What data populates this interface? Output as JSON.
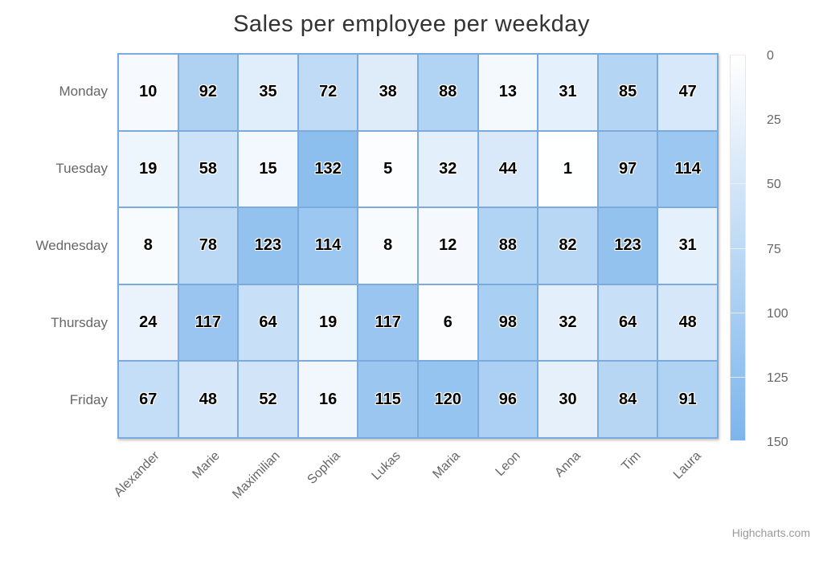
{
  "title": "Sales per employee per weekday",
  "credit_label": "Highcharts.com",
  "colors": {
    "title_text": "#333333",
    "axis_label": "#666666",
    "cell_border": "#7daadc",
    "data_label": "#000000",
    "legend_border": "#e6e6e6",
    "legend_tick": "#f0f0f0",
    "credit_text": "#999999"
  },
  "chart_data": {
    "type": "heatmap",
    "title": "Sales per employee per weekday",
    "xlabel": "",
    "ylabel": "",
    "x_categories": [
      "Alexander",
      "Marie",
      "Maximilian",
      "Sophia",
      "Lukas",
      "Maria",
      "Leon",
      "Anna",
      "Tim",
      "Laura"
    ],
    "y_categories": [
      "Monday",
      "Tuesday",
      "Wednesday",
      "Thursday",
      "Friday"
    ],
    "series": [
      {
        "name": "Monday",
        "values": [
          10,
          92,
          35,
          72,
          38,
          88,
          13,
          31,
          85,
          47
        ]
      },
      {
        "name": "Tuesday",
        "values": [
          19,
          58,
          15,
          132,
          5,
          32,
          44,
          1,
          97,
          114
        ]
      },
      {
        "name": "Wednesday",
        "values": [
          8,
          78,
          123,
          114,
          8,
          12,
          88,
          82,
          123,
          31
        ]
      },
      {
        "name": "Thursday",
        "values": [
          24,
          117,
          64,
          19,
          117,
          6,
          98,
          32,
          64,
          48
        ]
      },
      {
        "name": "Friday",
        "values": [
          67,
          48,
          52,
          16,
          115,
          120,
          96,
          30,
          84,
          91
        ]
      }
    ],
    "data_labels_shown": true,
    "grid": "cell-borders",
    "color_axis": {
      "min": 0,
      "max": 150,
      "tick_interval": 25,
      "ticks": [
        0,
        25,
        50,
        75,
        100,
        125,
        150
      ],
      "min_color": "#ffffff",
      "max_color": "#7cb5ec",
      "legend_position": "right"
    }
  }
}
